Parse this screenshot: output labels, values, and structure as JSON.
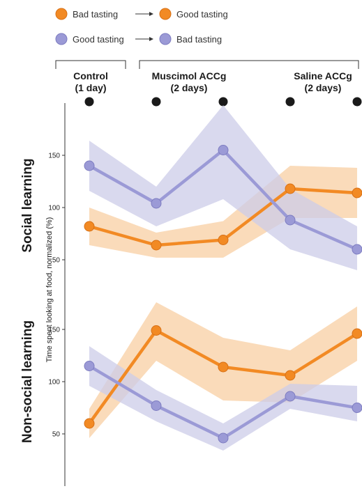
{
  "colors": {
    "orange": "#f28a24",
    "orange_band": "#f8cfa3",
    "purple": "#9b9ad6",
    "purple_band": "#cccce8",
    "marker_edge_orange": "#d77016",
    "marker_edge_purple": "#7d7cc0",
    "axis": "#333333",
    "dot": "#1a1a1a"
  },
  "legend": [
    {
      "from": "Bad tasting",
      "to": "Good tasting",
      "color": "orange"
    },
    {
      "from": "Good tasting",
      "to": "Bad tasting",
      "color": "purple"
    }
  ],
  "conditions": [
    {
      "line1": "Control",
      "line2": "(1 day)"
    },
    {
      "line1": "Muscimol ACCg",
      "line2": "(2 days)"
    },
    {
      "line1": "Saline ACCg",
      "line2": "(2 days)"
    }
  ],
  "y_axis_label": "Time spent looking at food, normalized (%)",
  "chart_data": [
    {
      "type": "line",
      "row_label": "Social learning",
      "x": [
        1,
        2,
        3,
        4,
        5
      ],
      "yticks": [
        50,
        100,
        150
      ],
      "series": [
        {
          "legend_index": 0,
          "color": "orange",
          "values": [
            82,
            64,
            69,
            118,
            114
          ],
          "lower": [
            64,
            52,
            52,
            90,
            90
          ],
          "upper": [
            100,
            76,
            87,
            140,
            138
          ]
        },
        {
          "legend_index": 1,
          "color": "purple",
          "values": [
            140,
            104,
            155,
            88,
            60
          ],
          "lower": [
            116,
            82,
            108,
            60,
            40
          ],
          "upper": [
            164,
            120,
            198,
            118,
            82
          ]
        }
      ]
    },
    {
      "type": "line",
      "row_label": "Non-social learning",
      "x": [
        1,
        2,
        3,
        4,
        5
      ],
      "yticks": [
        50,
        100,
        150
      ],
      "series": [
        {
          "legend_index": 0,
          "color": "orange",
          "values": [
            60,
            149,
            114,
            106,
            146
          ],
          "lower": [
            46,
            120,
            82,
            80,
            120
          ],
          "upper": [
            74,
            176,
            142,
            130,
            172
          ]
        },
        {
          "legend_index": 1,
          "color": "purple",
          "values": [
            115,
            77,
            46,
            86,
            75
          ],
          "lower": [
            96,
            62,
            34,
            74,
            62
          ],
          "upper": [
            134,
            92,
            60,
            98,
            96
          ]
        }
      ]
    }
  ]
}
